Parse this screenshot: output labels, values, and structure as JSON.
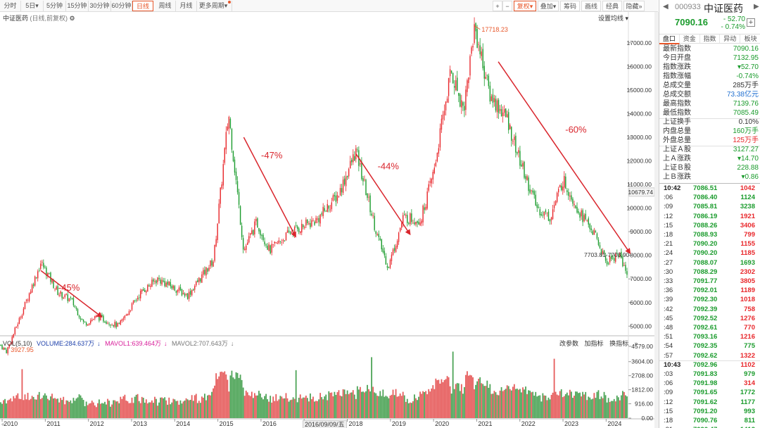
{
  "toolbar": {
    "periods": [
      "分时",
      "5日",
      "5分钟",
      "15分钟",
      "30分钟",
      "60分钟",
      "日线",
      "周线",
      "月线",
      "更多周期"
    ],
    "active_period": "日线",
    "right_buttons": [
      "+",
      "−",
      "复权",
      "叠加",
      "筹码",
      "画线",
      "经典",
      "隐藏"
    ]
  },
  "chart_header": {
    "name": "中证医药",
    "subtitle": "(日线,前复权)",
    "settings": "设置均线"
  },
  "annotations": {
    "drop1": "-45%",
    "drop2": "-47%",
    "drop3": "-44%",
    "drop4": "-60%"
  },
  "price_marks": {
    "low": "3927.95",
    "high": "17718.23",
    "range": "7703.81-7703.90",
    "current_level": "10679.74"
  },
  "chart_data": {
    "type": "candlestick",
    "x_ticks": [
      "2010",
      "2011",
      "2012",
      "2013",
      "2014",
      "2015",
      "2016",
      "2017",
      "2018",
      "2019",
      "2020",
      "2021",
      "2022",
      "2023",
      "2024"
    ],
    "y_ticks": [
      "17000.00",
      "16000.00",
      "15000.00",
      "14000.00",
      "13000.00",
      "12000.00",
      "11000.00",
      "10000.00",
      "9000.00",
      "8000.00",
      "7000.00",
      "6000.00",
      "5000.00"
    ],
    "ylim": [
      4800,
      17800
    ],
    "approx_close_path": [
      {
        "x": 2009.9,
        "y": 4300
      },
      {
        "x": 2010.1,
        "y": 3928
      },
      {
        "x": 2010.4,
        "y": 5300
      },
      {
        "x": 2010.9,
        "y": 7700
      },
      {
        "x": 2011.3,
        "y": 6400
      },
      {
        "x": 2011.6,
        "y": 6100
      },
      {
        "x": 2011.9,
        "y": 5100
      },
      {
        "x": 2012.2,
        "y": 5400
      },
      {
        "x": 2012.7,
        "y": 5000
      },
      {
        "x": 2013.2,
        "y": 6400
      },
      {
        "x": 2013.6,
        "y": 7000
      },
      {
        "x": 2014.3,
        "y": 6300
      },
      {
        "x": 2014.9,
        "y": 7800
      },
      {
        "x": 2015.25,
        "y": 14000
      },
      {
        "x": 2015.6,
        "y": 8200
      },
      {
        "x": 2015.9,
        "y": 9400
      },
      {
        "x": 2016.2,
        "y": 8200
      },
      {
        "x": 2016.7,
        "y": 9000
      },
      {
        "x": 2017.3,
        "y": 9500
      },
      {
        "x": 2017.8,
        "y": 10600
      },
      {
        "x": 2018.2,
        "y": 12400
      },
      {
        "x": 2018.7,
        "y": 8800
      },
      {
        "x": 2018.95,
        "y": 7500
      },
      {
        "x": 2019.3,
        "y": 9600
      },
      {
        "x": 2019.7,
        "y": 9500
      },
      {
        "x": 2020.0,
        "y": 11500
      },
      {
        "x": 2020.4,
        "y": 15800
      },
      {
        "x": 2020.7,
        "y": 14200
      },
      {
        "x": 2020.95,
        "y": 17718
      },
      {
        "x": 2021.3,
        "y": 14800
      },
      {
        "x": 2021.7,
        "y": 13800
      },
      {
        "x": 2022.0,
        "y": 12000
      },
      {
        "x": 2022.4,
        "y": 10000
      },
      {
        "x": 2022.7,
        "y": 9600
      },
      {
        "x": 2023.0,
        "y": 11200
      },
      {
        "x": 2023.4,
        "y": 9800
      },
      {
        "x": 2023.7,
        "y": 9000
      },
      {
        "x": 2024.0,
        "y": 7704
      },
      {
        "x": 2024.3,
        "y": 8100
      },
      {
        "x": 2024.45,
        "y": 7300
      }
    ],
    "volume": {
      "y_ticks": [
        "4579.00",
        "3604.00",
        "2708.00",
        "1812.00",
        "916.00",
        "0.00"
      ],
      "ylim": [
        0,
        4579
      ],
      "label": "VOL(5,10)",
      "volume": "VOLUME:284.637万",
      "mavol1": "MAVOL1:639.464万",
      "mavol2": "MAVOL2:707.643万"
    }
  },
  "vol_tools": [
    "改参数",
    "加指标",
    "换指标"
  ],
  "date_label": "2016/09/09/五",
  "panel": {
    "code": "000933",
    "name": "中证医药",
    "price": "7090.16",
    "change": "- 52.70",
    "change_pct": "- 0.74%",
    "tabs": [
      "盘口",
      "资金",
      "指数",
      "异动",
      "板块"
    ],
    "stats": [
      {
        "label": "最新指数",
        "value": "7090.16",
        "cls": "dn"
      },
      {
        "label": "今日开盘",
        "value": "7132.95",
        "cls": "dn"
      },
      {
        "label": "指数涨跌",
        "value": "▾52.70",
        "cls": "dn"
      },
      {
        "label": "指数涨幅",
        "value": "-0.74%",
        "cls": "dn"
      },
      {
        "label": "总成交量",
        "value": "285万手",
        "cls": ""
      },
      {
        "label": "总成交额",
        "value": "73.38亿元",
        "cls": "blue"
      },
      {
        "label": "最高指数",
        "value": "7139.76",
        "cls": "dn"
      },
      {
        "label": "最低指数",
        "value": "7085.49",
        "cls": "dn"
      },
      {
        "label": "上证换手",
        "value": "0.10%",
        "cls": ""
      },
      {
        "label": "内盘总量",
        "value": "160万手",
        "cls": "dn"
      },
      {
        "label": "外盘总量",
        "value": "125万手",
        "cls": "up"
      },
      {
        "label": "上证Ａ股",
        "value": "3127.27",
        "cls": "dn"
      },
      {
        "label": "上Ａ涨跌",
        "value": "▾14.70",
        "cls": "dn"
      },
      {
        "label": "上证Ｂ股",
        "value": "228.88",
        "cls": "dn"
      },
      {
        "label": "上Ｂ涨跌",
        "value": "▾0.86",
        "cls": "dn"
      }
    ],
    "ticks": [
      {
        "t": "10:42",
        "p": "7086.51",
        "v": "1042",
        "c": "up",
        "full": true
      },
      {
        "t": ":06",
        "p": "7086.40",
        "v": "1124",
        "c": "dn"
      },
      {
        "t": ":09",
        "p": "7085.81",
        "v": "3238",
        "c": "dn"
      },
      {
        "t": ":12",
        "p": "7086.19",
        "v": "1921",
        "c": "up"
      },
      {
        "t": ":15",
        "p": "7088.26",
        "v": "3406",
        "c": "up"
      },
      {
        "t": ":18",
        "p": "7088.93",
        "v": "799",
        "c": "up"
      },
      {
        "t": ":21",
        "p": "7090.20",
        "v": "1155",
        "c": "up"
      },
      {
        "t": ":24",
        "p": "7090.20",
        "v": "1185",
        "c": "up"
      },
      {
        "t": ":27",
        "p": "7088.07",
        "v": "1693",
        "c": "dn"
      },
      {
        "t": ":30",
        "p": "7088.29",
        "v": "2302",
        "c": "up"
      },
      {
        "t": ":33",
        "p": "7091.77",
        "v": "3805",
        "c": "up"
      },
      {
        "t": ":36",
        "p": "7092.01",
        "v": "1189",
        "c": "up"
      },
      {
        "t": ":39",
        "p": "7092.30",
        "v": "1018",
        "c": "up"
      },
      {
        "t": ":42",
        "p": "7092.39",
        "v": "758",
        "c": "up"
      },
      {
        "t": ":45",
        "p": "7092.52",
        "v": "1276",
        "c": "up"
      },
      {
        "t": ":48",
        "p": "7092.61",
        "v": "770",
        "c": "up"
      },
      {
        "t": ":51",
        "p": "7093.16",
        "v": "1216",
        "c": "up"
      },
      {
        "t": ":54",
        "p": "7092.35",
        "v": "775",
        "c": "dn"
      },
      {
        "t": ":57",
        "p": "7092.62",
        "v": "1322",
        "c": "up"
      },
      {
        "t": "10:43",
        "p": "7092.96",
        "v": "1102",
        "c": "up",
        "full": true
      },
      {
        "t": ":03",
        "p": "7091.83",
        "v": "979",
        "c": "dn"
      },
      {
        "t": ":06",
        "p": "7091.98",
        "v": "314",
        "c": "up"
      },
      {
        "t": ":09",
        "p": "7091.65",
        "v": "1772",
        "c": "dn"
      },
      {
        "t": ":12",
        "p": "7091.62",
        "v": "1177",
        "c": "dn"
      },
      {
        "t": ":15",
        "p": "7091.20",
        "v": "993",
        "c": "dn"
      },
      {
        "t": ":18",
        "p": "7090.76",
        "v": "811",
        "c": "dn"
      },
      {
        "t": ":21",
        "p": "7090.47",
        "v": "1412",
        "c": "dn"
      }
    ]
  }
}
